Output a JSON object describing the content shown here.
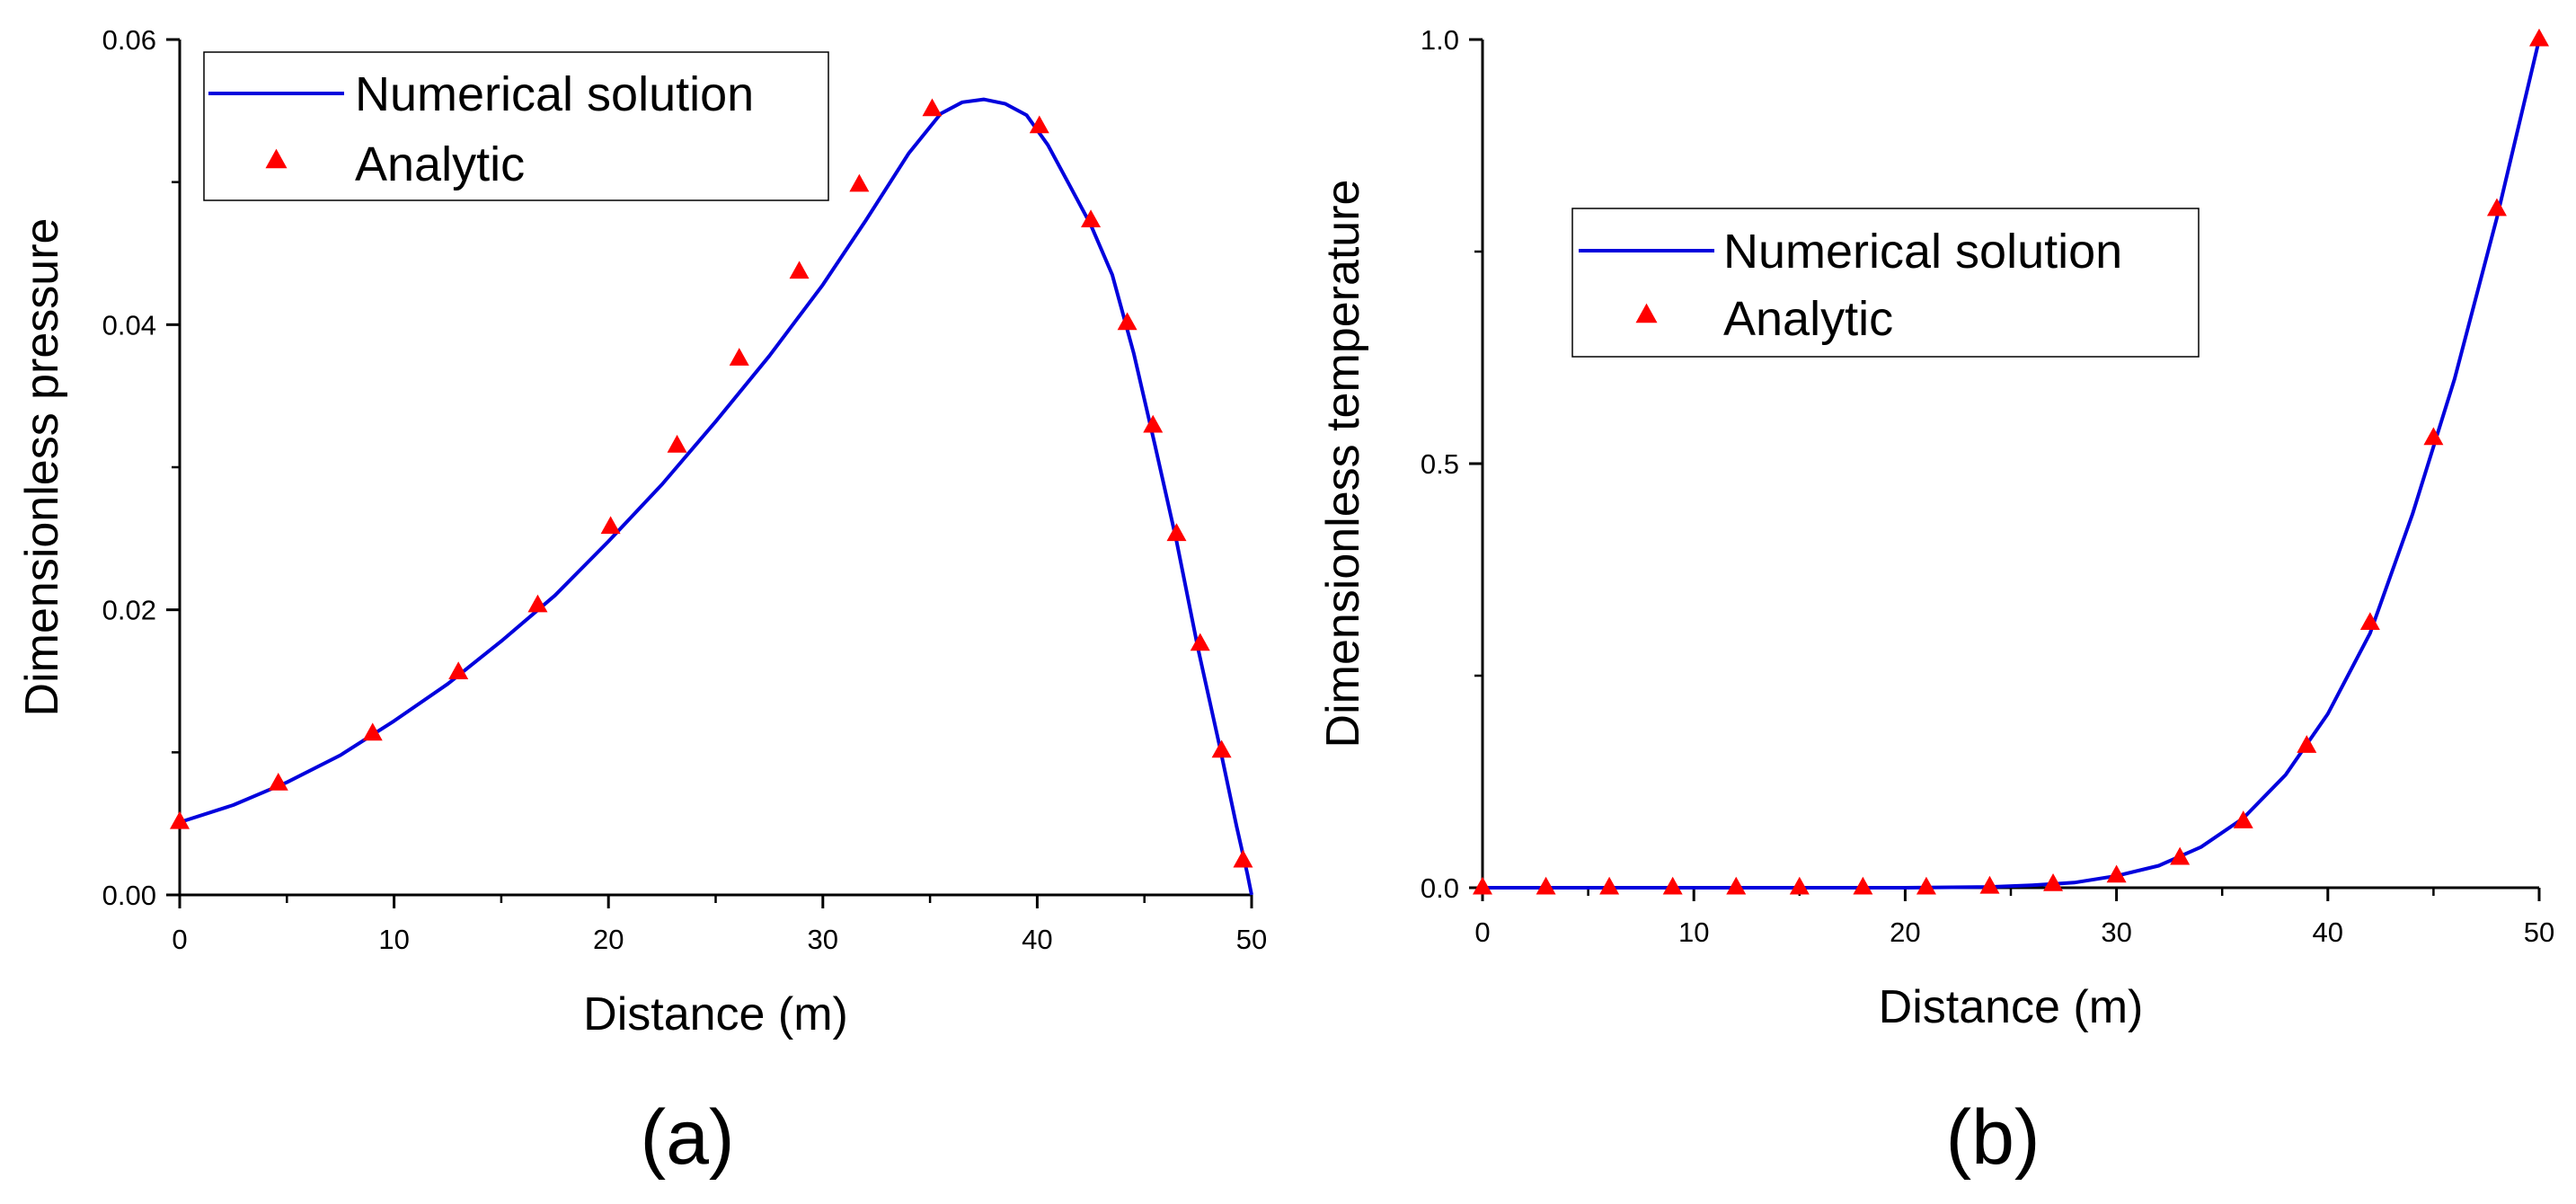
{
  "figure": {
    "panels": [
      {
        "label": "(a)"
      },
      {
        "label": "(b)"
      }
    ]
  },
  "chart_data": [
    {
      "type": "line",
      "panel": "(a)",
      "xlabel": "Distance (m)",
      "ylabel": "Dimensionless pressure",
      "xlim": [
        0,
        50
      ],
      "ylim": [
        0,
        0.06
      ],
      "xticks": [
        0,
        10,
        20,
        30,
        40,
        50
      ],
      "xtick_labels": [
        "0",
        "10",
        "20",
        "30",
        "40",
        "50"
      ],
      "yticks": [
        0,
        0.02,
        0.04,
        0.06
      ],
      "ytick_labels": [
        "0.00",
        "0.02",
        "0.04",
        "0.06"
      ],
      "x_minor_step": 5,
      "y_minor_step": 0.01,
      "legend_position": "top-left",
      "series": [
        {
          "name": "Numerical solution",
          "style": "line",
          "color": "#0000dd",
          "x": [
            0,
            2.5,
            5,
            7.5,
            10,
            12.5,
            15,
            17.5,
            20,
            22.5,
            25,
            27.5,
            30,
            32,
            34,
            35.5,
            36.5,
            37.5,
            38.5,
            39.5,
            40.5,
            41.5,
            42.5,
            43.5,
            44.5,
            45.5,
            46.5,
            47.5,
            48.5,
            49.3,
            49.8,
            50
          ],
          "y": [
            0.0051,
            0.0063,
            0.0079,
            0.0098,
            0.0122,
            0.0148,
            0.0178,
            0.021,
            0.0248,
            0.0288,
            0.0332,
            0.0378,
            0.0428,
            0.0473,
            0.052,
            0.0548,
            0.0556,
            0.0558,
            0.0555,
            0.0547,
            0.0526,
            0.0498,
            0.047,
            0.0435,
            0.038,
            0.0315,
            0.0248,
            0.0173,
            0.0105,
            0.0048,
            0.0015,
            0.0
          ]
        },
        {
          "name": "Analytic",
          "style": "markers",
          "marker": "triangle",
          "color": "#ff0000",
          "x": [
            0,
            4.6,
            9.0,
            13.0,
            16.7,
            20.1,
            23.2,
            26.1,
            28.9,
            31.7,
            35.1,
            40.1,
            42.5,
            44.2,
            45.4,
            46.5,
            47.6,
            48.6,
            49.6
          ],
          "y": [
            0.0051,
            0.0078,
            0.0113,
            0.0156,
            0.0203,
            0.0258,
            0.0315,
            0.0376,
            0.0437,
            0.0498,
            0.0551,
            0.0539,
            0.0473,
            0.0401,
            0.0329,
            0.0253,
            0.0176,
            0.0101,
            0.0024
          ]
        }
      ]
    },
    {
      "type": "line",
      "panel": "(b)",
      "xlabel": "Distance (m)",
      "ylabel": "Dimensionless temperature",
      "xlim": [
        0,
        50
      ],
      "ylim": [
        0,
        1.0
      ],
      "xticks": [
        0,
        10,
        20,
        30,
        40,
        50
      ],
      "xtick_labels": [
        "0",
        "10",
        "20",
        "30",
        "40",
        "50"
      ],
      "yticks": [
        0,
        0.5,
        1.0
      ],
      "ytick_labels": [
        "0.0",
        "0.5",
        "1.0"
      ],
      "x_minor_step": 5,
      "y_minor_step": 0.25,
      "legend_position": "upper-center",
      "series": [
        {
          "name": "Numerical solution",
          "style": "line",
          "color": "#0000dd",
          "x": [
            0,
            5,
            10,
            15,
            20,
            24,
            26,
            28,
            30,
            32,
            34,
            36,
            38,
            40,
            42,
            44,
            46,
            48,
            50
          ],
          "y": [
            0,
            0,
            0,
            0,
            0,
            0.001,
            0.003,
            0.006,
            0.014,
            0.026,
            0.048,
            0.082,
            0.133,
            0.205,
            0.3,
            0.44,
            0.6,
            0.79,
            1.0
          ]
        },
        {
          "name": "Analytic",
          "style": "markers",
          "marker": "triangle",
          "color": "#ff0000",
          "x": [
            0,
            3,
            6,
            9,
            12,
            15,
            18,
            21,
            24,
            27,
            30,
            33,
            36,
            39,
            42,
            45,
            48,
            50
          ],
          "y": [
            0,
            0,
            0,
            0,
            0,
            0,
            0,
            0,
            0.001,
            0.004,
            0.014,
            0.035,
            0.078,
            0.167,
            0.312,
            0.53,
            0.8,
            1.0
          ]
        }
      ]
    }
  ]
}
